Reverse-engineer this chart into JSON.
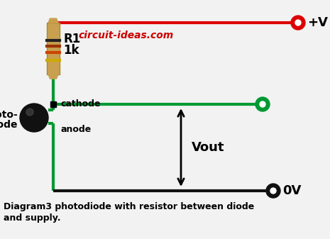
{
  "title_line1": "Diagram3 photodiode with resistor between diode",
  "title_line2": "and supply.",
  "watermark": "circuit-ideas.com",
  "watermark_color": "#cc0000",
  "bg_color": "#f2f2f2",
  "label_R1": "R1",
  "label_1k": "1k",
  "label_cathode": "cathode",
  "label_anode": "anode",
  "label_photodiode_1": "Photo-",
  "label_photodiode_2": "diode",
  "label_vout": "Vout",
  "label_vplus": "+V",
  "label_0v": "0V",
  "wire_red": "#dd0000",
  "wire_green": "#009933",
  "wire_black": "#111111",
  "node_red_fill": "#dd0000",
  "node_green_fill": "#009933",
  "node_black_fill": "#111111",
  "resistor_body_color": "#c8a050",
  "band1": "#222222",
  "band2": "#993300",
  "band3": "#cc4400",
  "band4": "#ccaa00"
}
